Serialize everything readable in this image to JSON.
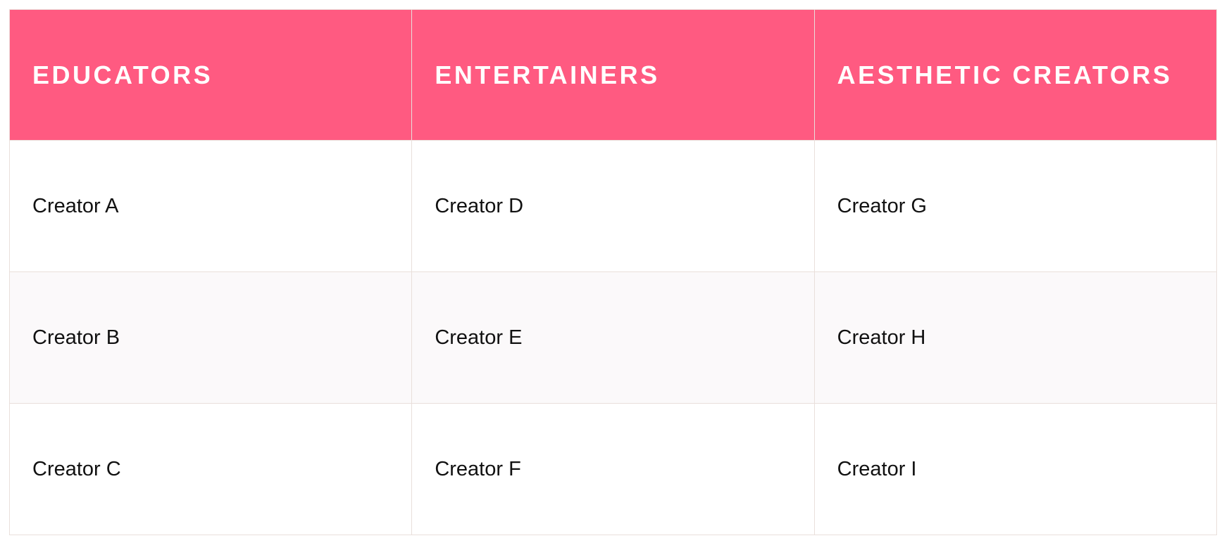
{
  "table": {
    "headers": [
      "EDUCATORS",
      "ENTERTAINERS",
      "AESTHETIC CREATORS"
    ],
    "rows": [
      [
        "Creator A",
        "Creator D",
        "Creator G"
      ],
      [
        "Creator B",
        "Creator E",
        "Creator H"
      ],
      [
        "Creator C",
        "Creator F",
        "Creator I"
      ]
    ]
  },
  "colors": {
    "header_bg": "#ff5a81",
    "header_text": "#ffffff",
    "border": "#e9dfdb",
    "alt_row": "#fbf9fa"
  }
}
